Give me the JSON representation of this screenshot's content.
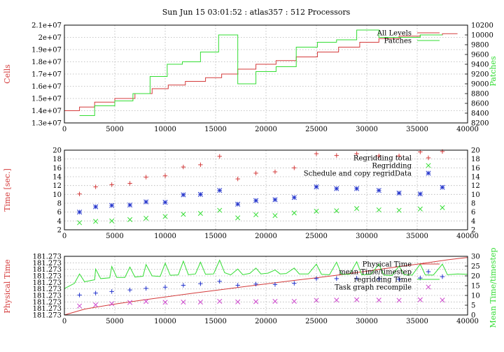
{
  "title": "Sun Jun 15 03:01:52 : atlas357 : 512 Processors",
  "colors": {
    "red": "#d43b3b",
    "green": "#33dd33",
    "blue": "#2233cc",
    "magenta": "#cc44cc",
    "grid": "#b4b4b4",
    "axis": "#000000"
  },
  "chart_data": [
    {
      "type": "line",
      "ylabel": "Cells",
      "y2label": "Patches",
      "xlim": [
        0,
        40000
      ],
      "ylim": [
        13000000,
        21000000
      ],
      "y2lim": [
        8200,
        10200
      ],
      "xticks": [
        0,
        5000,
        10000,
        15000,
        20000,
        25000,
        30000,
        35000,
        40000
      ],
      "yticks": [
        13000000,
        14000000,
        15000000,
        16000000,
        17000000,
        18000000,
        19000000,
        20000000,
        21000000
      ],
      "ytick_labels": [
        "1.3e+07",
        "1.4e+07",
        "1.5e+07",
        "1.6e+07",
        "1.7e+07",
        "1.8e+07",
        "1.9e+07",
        "2e+07",
        "2.1e+07"
      ],
      "y2ticks": [
        8200,
        8400,
        8600,
        8800,
        9000,
        9200,
        9400,
        9600,
        9800,
        10000,
        10200
      ],
      "legend": "top-right",
      "grid": true,
      "series": [
        {
          "name": "All Levels",
          "color": "#d43b3b",
          "step": true,
          "axis": "y",
          "x": [
            0,
            1500,
            3000,
            5000,
            7000,
            8700,
            10300,
            12000,
            14000,
            15600,
            17200,
            19000,
            21000,
            23000,
            25100,
            27200,
            29300,
            31200,
            33200,
            35300,
            37500,
            39000
          ],
          "y": [
            14000000,
            14300000,
            14700000,
            15000000,
            15400000,
            15800000,
            16100000,
            16400000,
            16700000,
            17000000,
            17400000,
            17800000,
            18100000,
            18400000,
            18800000,
            19200000,
            19600000,
            19900000,
            20100000,
            20200000,
            20300000,
            20300000
          ]
        },
        {
          "name": "Patches",
          "color": "#33dd33",
          "step": true,
          "axis": "y2",
          "x": [
            1500,
            3000,
            5000,
            6800,
            8500,
            10200,
            11700,
            13500,
            15300,
            17200,
            19000,
            21000,
            23000,
            25100,
            27000,
            29000,
            31200,
            33200,
            35300,
            37500
          ],
          "y": [
            8350,
            8550,
            8650,
            8800,
            9150,
            9400,
            9450,
            9650,
            10000,
            9000,
            9250,
            9350,
            9750,
            9850,
            9900,
            10100,
            9950,
            9950,
            10000,
            10000
          ]
        }
      ]
    },
    {
      "type": "scatter",
      "ylabel": "Time [sec.]",
      "xlim": [
        0,
        40000
      ],
      "ylim": [
        2,
        20
      ],
      "xticks": [
        0,
        5000,
        10000,
        15000,
        20000,
        25000,
        30000,
        35000,
        40000
      ],
      "yticks": [
        2,
        4,
        6,
        8,
        10,
        12,
        14,
        16,
        18,
        20
      ],
      "legend": "top-right",
      "grid": true,
      "series": [
        {
          "name": "Regridding total",
          "marker": "+",
          "color": "#d43b3b",
          "x": [
            1500,
            3100,
            4700,
            6500,
            8100,
            10000,
            11800,
            13500,
            15400,
            17200,
            19000,
            20900,
            22800,
            25000,
            27000,
            29000,
            31200,
            33200,
            35300,
            37500
          ],
          "y": [
            10.1,
            11.7,
            12.2,
            12.5,
            13.9,
            14.2,
            16.2,
            16.7,
            18.6,
            13.5,
            14.8,
            15.1,
            16.0,
            19.2,
            18.8,
            19.2,
            18.7,
            18.7,
            19.6,
            19.7
          ]
        },
        {
          "name": "Regridding",
          "marker": "x",
          "color": "#33dd33",
          "x": [
            1500,
            3100,
            4700,
            6500,
            8100,
            10000,
            11800,
            13500,
            15400,
            17200,
            19000,
            20900,
            22800,
            25000,
            27000,
            29000,
            31200,
            33200,
            35300,
            37500
          ],
          "y": [
            3.6,
            3.9,
            4.0,
            4.3,
            4.6,
            5.0,
            5.5,
            5.7,
            6.4,
            4.7,
            5.4,
            5.2,
            5.8,
            6.2,
            6.3,
            6.8,
            6.5,
            6.4,
            6.7,
            7.0
          ]
        },
        {
          "name": "Schedule and copy regridData",
          "marker": "*",
          "color": "#2233cc",
          "x": [
            1500,
            3100,
            4700,
            6500,
            8100,
            10000,
            11800,
            13500,
            15400,
            17200,
            19000,
            20900,
            22800,
            25000,
            27000,
            29000,
            31200,
            33200,
            35300,
            37500
          ],
          "y": [
            6.0,
            7.2,
            7.5,
            7.6,
            8.3,
            8.2,
            9.9,
            10.0,
            10.9,
            7.8,
            8.6,
            8.8,
            9.3,
            11.7,
            11.3,
            11.3,
            10.9,
            10.3,
            10.1,
            11.6
          ]
        }
      ]
    },
    {
      "type": "line",
      "ylabel": "Physical Time",
      "y2label": "Mean Time/timestep",
      "xlim": [
        0,
        40000
      ],
      "y2lim": [
        0,
        30
      ],
      "xticks": [
        0,
        5000,
        10000,
        15000,
        20000,
        25000,
        30000,
        35000,
        40000
      ],
      "ytick_labels": [
        "181.273",
        "181.273",
        "181.273",
        "181.273",
        "181.273",
        "181.273",
        "181.273",
        "181.273",
        "181.273",
        "181.273"
      ],
      "y2ticks": [
        0,
        5,
        10,
        15,
        20,
        25,
        30
      ],
      "legend": "top-right",
      "grid": true,
      "series": [
        {
          "name": "Physical Time",
          "color": "#d43b3b",
          "axis": "y2",
          "x": [
            0,
            2000,
            5000,
            8000,
            10000,
            13000,
            15000,
            18000,
            20000,
            23000,
            25000,
            28000,
            30000,
            33000,
            35000,
            38000,
            40000
          ],
          "y": [
            0.0,
            3.0,
            5.6,
            7.8,
            9.2,
            11.3,
            12.6,
            14.6,
            15.9,
            17.8,
            19.0,
            21.0,
            22.4,
            24.6,
            26.0,
            28.2,
            29.4
          ]
        },
        {
          "name": "mean Time/timestep",
          "marker": "+",
          "color": "#2233cc",
          "axis": "y2",
          "x": [
            1500,
            3100,
            4700,
            6500,
            8100,
            10000,
            11800,
            13500,
            15400,
            17200,
            19000,
            20900,
            22800,
            25000,
            27000,
            29000,
            31200,
            33200,
            35300,
            37500
          ],
          "y": [
            10.2,
            11.2,
            12.0,
            12.8,
            13.6,
            14.2,
            15.2,
            16.0,
            17.2,
            15.2,
            15.8,
            15.6,
            16.2,
            18.6,
            18.6,
            18.8,
            18.5,
            18.3,
            18.9,
            19.6
          ]
        },
        {
          "name": "regridding Time",
          "color": "#33dd33",
          "axis": "y2",
          "x": [
            0,
            1000,
            1500,
            2000,
            3000,
            3100,
            3600,
            4500,
            4700,
            5200,
            6000,
            6500,
            7000,
            7800,
            8100,
            8700,
            9500,
            10000,
            10500,
            11300,
            11800,
            12300,
            13000,
            13500,
            14000,
            14800,
            15400,
            15900,
            16500,
            17200,
            17700,
            18400,
            19000,
            19500,
            20200,
            20900,
            21400,
            22000,
            22800,
            23300,
            24200,
            25000,
            25500,
            26300,
            27000,
            27500,
            28300,
            29000,
            29500,
            30400,
            31200,
            31700,
            32500,
            33200,
            33700,
            34500,
            35300,
            35800,
            36600,
            37500,
            38000,
            39000,
            40000
          ],
          "y": [
            13.5,
            16.2,
            21.0,
            17.0,
            18.0,
            23.5,
            18.6,
            19.0,
            24.8,
            19.2,
            19.2,
            24.5,
            19.4,
            19.8,
            25.8,
            20.0,
            19.7,
            26.5,
            20.3,
            20.5,
            27.5,
            20.6,
            21.0,
            27.0,
            20.8,
            21.0,
            28.0,
            21.6,
            20.5,
            23.5,
            20.6,
            21.3,
            24.0,
            21.0,
            21.4,
            23.0,
            21.0,
            21.2,
            24.0,
            21.0,
            21.0,
            26.0,
            20.8,
            20.6,
            27.0,
            20.8,
            20.8,
            27.2,
            20.6,
            20.8,
            26.0,
            20.4,
            20.2,
            25.0,
            20.6,
            20.4,
            26.0,
            20.5,
            20.4,
            26.0,
            20.6,
            21.0,
            20.8
          ]
        },
        {
          "name": "Task graph recompile",
          "marker": "x",
          "color": "#cc44cc",
          "axis": "y2",
          "x": [
            1500,
            3100,
            4700,
            6500,
            8100,
            10000,
            11800,
            13500,
            15400,
            17200,
            19000,
            20900,
            22800,
            25000,
            27000,
            29000,
            31200,
            33200,
            35300,
            37500
          ],
          "y": [
            4.6,
            5.2,
            5.8,
            6.4,
            6.9,
            6.5,
            6.6,
            6.6,
            7.0,
            6.7,
            6.8,
            7.0,
            7.0,
            7.5,
            7.6,
            7.8,
            7.6,
            7.5,
            7.8,
            7.6
          ]
        }
      ]
    }
  ]
}
